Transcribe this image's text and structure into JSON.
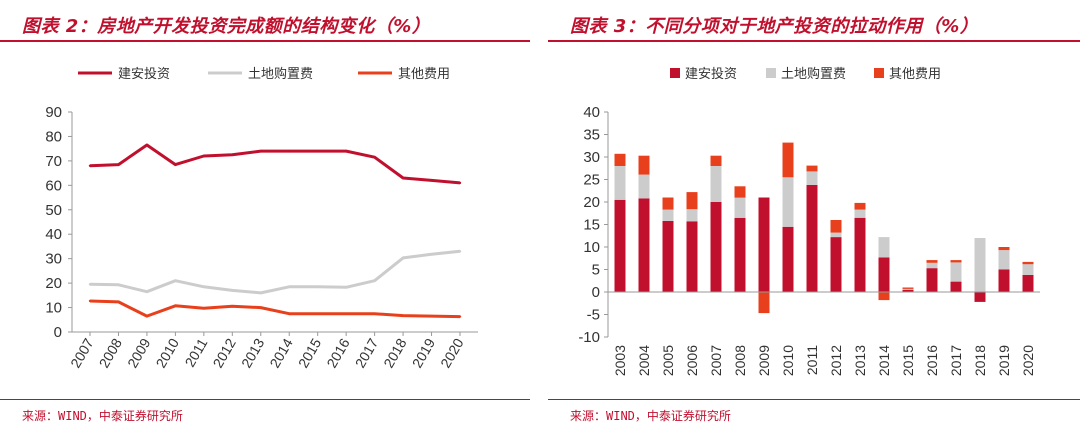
{
  "colors": {
    "accent": "#c0102e",
    "construction": "#c0102e",
    "land": "#cccccc",
    "other": "#e8401c",
    "axis": "#999999",
    "tick_text": "#333333"
  },
  "left": {
    "title": "图表 2：房地产开发投资完成额的结构变化（%）",
    "source": "来源：WIND，中泰证券研究所"
  },
  "right": {
    "title": "图表 3：不同分项对于地产投资的拉动作用（%）",
    "source": "来源：WIND，中泰证券研究所"
  },
  "chart_data": [
    {
      "type": "line",
      "title": "房地产开发投资完成额的结构变化（%）",
      "categories": [
        "2007",
        "2008",
        "2009",
        "2010",
        "2011",
        "2012",
        "2013",
        "2014",
        "2015",
        "2016",
        "2017",
        "2018",
        "2019",
        "2020"
      ],
      "series": [
        {
          "name": "建安投资",
          "color": "#c0102e",
          "values": [
            68,
            68.5,
            76.5,
            68.5,
            72,
            72.5,
            74,
            74,
            74,
            74,
            71.5,
            63,
            62,
            61
          ]
        },
        {
          "name": "土地购置费",
          "color": "#cccccc",
          "values": [
            19.5,
            19.3,
            16.5,
            21,
            18.5,
            17,
            16,
            18.5,
            18.5,
            18.3,
            21,
            30.3,
            31.8,
            33
          ]
        },
        {
          "name": "其他费用",
          "color": "#e8401c",
          "values": [
            12.7,
            12.3,
            6.5,
            10.7,
            9.7,
            10.5,
            10,
            7.5,
            7.5,
            7.5,
            7.5,
            6.7,
            6.5,
            6.3
          ]
        }
      ],
      "ylim": [
        0,
        90
      ],
      "yticks": [
        0,
        10,
        20,
        30,
        40,
        50,
        60,
        70,
        80,
        90
      ],
      "legend": "top"
    },
    {
      "type": "bar",
      "stacked": true,
      "title": "不同分项对于地产投资的拉动作用（%）",
      "categories": [
        "2003",
        "2004",
        "2005",
        "2006",
        "2007",
        "2008",
        "2009",
        "2010",
        "2011",
        "2012",
        "2013",
        "2014",
        "2015",
        "2016",
        "2017",
        "2018",
        "2019",
        "2020"
      ],
      "series": [
        {
          "name": "建安投资",
          "color": "#c0102e",
          "values": [
            20.5,
            20.8,
            15.8,
            15.7,
            20,
            16.5,
            21,
            14.5,
            23.8,
            12.2,
            16.5,
            7.7,
            0.5,
            5.3,
            2.3,
            -2.2,
            5,
            3.8
          ]
        },
        {
          "name": "土地购置费",
          "color": "#cccccc",
          "values": [
            7.5,
            5.3,
            2.5,
            2.7,
            8,
            4.5,
            0,
            11,
            3,
            1,
            1.8,
            4.5,
            0.2,
            1.2,
            4.3,
            12,
            4.3,
            2.4
          ]
        },
        {
          "name": "其他费用",
          "color": "#e8401c",
          "values": [
            2.7,
            4.2,
            2.7,
            3.8,
            2.3,
            2.5,
            -4.7,
            7.7,
            1.3,
            2.8,
            1.5,
            -1.8,
            0.3,
            0.6,
            0.5,
            0,
            0.7,
            0.5
          ]
        }
      ],
      "ylim": [
        -10,
        40
      ],
      "yticks": [
        -10,
        -5,
        0,
        5,
        10,
        15,
        20,
        25,
        30,
        35,
        40
      ],
      "legend": "top"
    }
  ]
}
